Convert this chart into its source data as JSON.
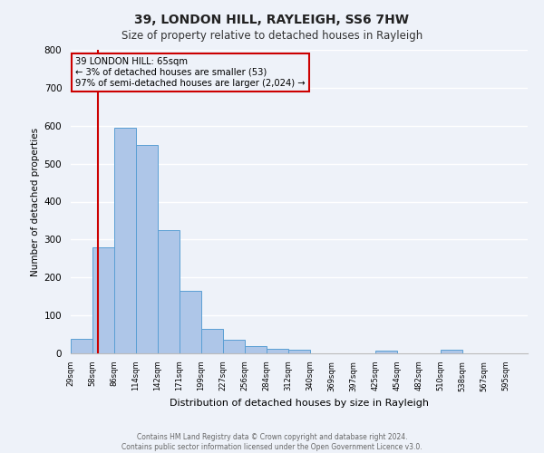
{
  "title": "39, LONDON HILL, RAYLEIGH, SS6 7HW",
  "subtitle": "Size of property relative to detached houses in Rayleigh",
  "xlabel": "Distribution of detached houses by size in Rayleigh",
  "ylabel": "Number of detached properties",
  "bin_labels": [
    "29sqm",
    "58sqm",
    "86sqm",
    "114sqm",
    "142sqm",
    "171sqm",
    "199sqm",
    "227sqm",
    "256sqm",
    "284sqm",
    "312sqm",
    "340sqm",
    "369sqm",
    "397sqm",
    "425sqm",
    "454sqm",
    "482sqm",
    "510sqm",
    "538sqm",
    "567sqm",
    "595sqm"
  ],
  "bar_values": [
    38,
    280,
    595,
    550,
    325,
    165,
    65,
    37,
    20,
    11,
    9,
    0,
    0,
    0,
    6,
    0,
    0,
    9,
    0,
    0,
    0
  ],
  "bar_color": "#aec6e8",
  "bar_edge_color": "#5a9fd4",
  "ylim": [
    0,
    800
  ],
  "yticks": [
    0,
    100,
    200,
    300,
    400,
    500,
    600,
    700,
    800
  ],
  "annotation_title": "39 LONDON HILL: 65sqm",
  "annotation_line1": "← 3% of detached houses are smaller (53)",
  "annotation_line2": "97% of semi-detached houses are larger (2,024) →",
  "vline_color": "#cc0000",
  "annotation_box_color": "#cc0000",
  "footer_line1": "Contains HM Land Registry data © Crown copyright and database right 2024.",
  "footer_line2": "Contains public sector information licensed under the Open Government Licence v3.0.",
  "bg_color": "#eef2f9",
  "grid_color": "#ffffff",
  "bin_edges": [
    29,
    58,
    86,
    114,
    142,
    171,
    199,
    227,
    256,
    284,
    312,
    340,
    369,
    397,
    425,
    454,
    482,
    510,
    538,
    567,
    595
  ],
  "property_sqm": 65
}
